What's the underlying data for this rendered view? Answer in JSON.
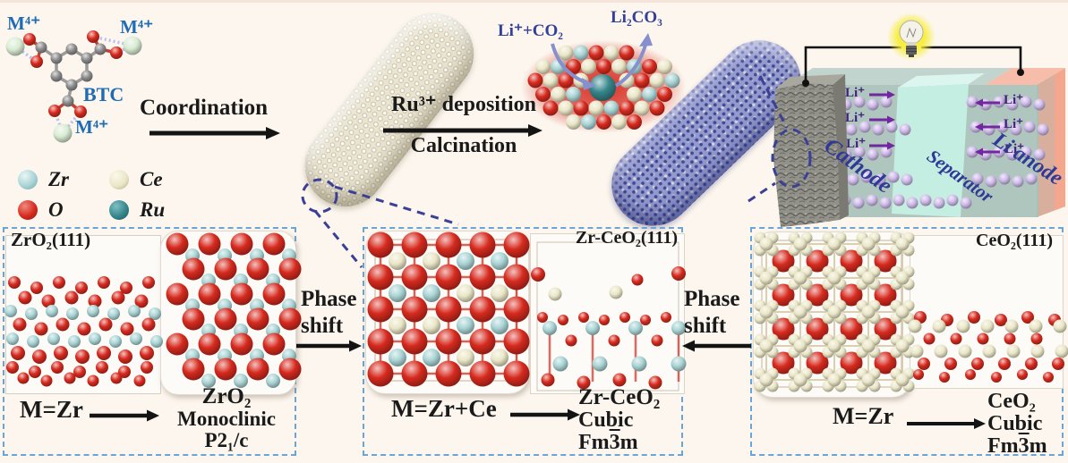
{
  "colors": {
    "background": "#fcf6ee",
    "text": "#1a1a1a",
    "blue_label": "#1e6cb5",
    "dark_blue_label": "#2e3a96",
    "reaction_label_blue": "#333f98",
    "li_purple": "#43207d",
    "li_arrow_purple": "#7226a0",
    "panel_border_blue": "#6aa5d8",
    "dashed_indicator_blue": "#3b3f96",
    "zr": "#a9d3d4",
    "ce": "#eae6c7",
    "o": "#d62a1e",
    "ru": "#35868b",
    "m": "#d9ecd3",
    "c": "#8c8c8c",
    "li": "#cdb9e8",
    "mof_rod": "#eae4d0",
    "ru_rod": "#939bce",
    "cathode_gray": "#92928b",
    "electrolyte_teal": "#a7c1b8",
    "separator_cyan": "#c4efe3",
    "anode_salmon": "#f2a78e",
    "bulb_glow_yellow": "#f7ee3a"
  },
  "molecule": {
    "m_ion": "M⁴⁺",
    "label_btc": "BTC"
  },
  "legend": {
    "items": [
      {
        "element": "Zr",
        "color_key": "zr"
      },
      {
        "element": "Ce",
        "color_key": "ce"
      },
      {
        "element": "O",
        "color_key": "o"
      },
      {
        "element": "Ru",
        "color_key": "ru"
      }
    ]
  },
  "process": {
    "step1": "Coordination",
    "step2_line1": "Ru³⁺ deposition",
    "step2_line2": "Calcination"
  },
  "reaction_site": {
    "reactants": "Li⁺+CO₂",
    "product": "Li₂CO₃"
  },
  "battery": {
    "ion": "Li⁺",
    "cathode": "Cathode",
    "separator": "Separator",
    "anode": "Li anode"
  },
  "panels": {
    "zro2": {
      "title": "ZrO₂(111)",
      "reaction": "M=Zr",
      "product_name": "ZrO₂",
      "crystal_system": "Monoclinic",
      "space_group": "P2₁/c"
    },
    "phase_shift_left": {
      "line1": "Phase",
      "line2": "shift"
    },
    "zr_ceo2": {
      "title": "Zr-CeO₂(111)",
      "reaction": "M=Zr+Ce",
      "product_name": "Zr-CeO₂",
      "crystal_system": "Cubic",
      "space_group_pre": "Fm",
      "space_group_bar": "3",
      "space_group_post": "m"
    },
    "phase_shift_right": {
      "line1": "Phase",
      "line2": "shift"
    },
    "ceo2": {
      "title": "CeO₂(111)",
      "reaction": "M=Zr",
      "product_name": "CeO₂",
      "crystal_system": "Cubic",
      "space_group_pre": "Fm",
      "space_group_bar": "3",
      "space_group_post": "m"
    }
  }
}
